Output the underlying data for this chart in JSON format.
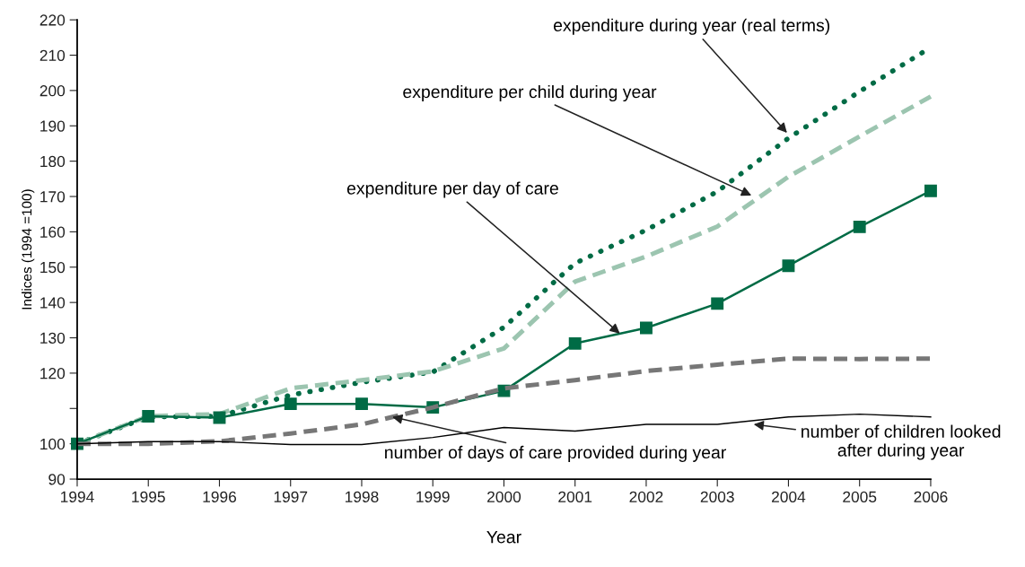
{
  "chart_data": {
    "type": "line",
    "xlabel": "Year",
    "ylabel": "Indices (1994 =100)",
    "x": [
      1994,
      1995,
      1996,
      1997,
      1998,
      1999,
      2000,
      2001,
      2002,
      2003,
      2004,
      2005,
      2006
    ],
    "xlim": [
      1994,
      2006
    ],
    "xticks": [
      1994,
      1995,
      1996,
      1997,
      1998,
      1999,
      2000,
      2001,
      2002,
      2003,
      2004,
      2005,
      2006
    ],
    "ylim": [
      90,
      220
    ],
    "yticks": [
      90,
      100,
      {
        "value": 110,
        "label": null
      },
      120,
      130,
      140,
      150,
      160,
      170,
      180,
      190,
      200,
      210,
      220
    ],
    "grid": false,
    "series": [
      {
        "color": "#006b45",
        "line_style": "dotted",
        "marker": "none",
        "values": [
          100,
          107.6,
          107.8,
          113.8,
          117.4,
          120.3,
          133,
          151.1,
          160.5,
          171.4,
          186.5,
          199.7,
          212.2
        ]
      },
      {
        "color": "#9cc5b0",
        "line_style": "dashed",
        "marker": "none",
        "values": [
          100,
          107.8,
          108.4,
          115.7,
          118,
          120.5,
          127,
          145.9,
          153,
          161.5,
          175.6,
          187,
          198.3
        ]
      },
      {
        "color": "#006b45",
        "line_style": "solid",
        "marker": "square",
        "values": [
          100,
          107.8,
          107.4,
          111.3,
          111.3,
          110.3,
          115,
          128.4,
          132.8,
          139.7,
          150.4,
          161.4,
          171.6
        ]
      },
      {
        "color": "#777777",
        "line_style": "dashed",
        "marker": "none",
        "values": [
          100,
          100,
          100.7,
          102.9,
          105.5,
          110.3,
          115.7,
          118,
          120.6,
          122.4,
          124.1,
          124,
          124.1
        ]
      },
      {
        "color": "#000000",
        "line_style": "solid",
        "marker": "none",
        "values": [
          100,
          100.6,
          100.6,
          99.8,
          99.8,
          101.8,
          104.6,
          103.6,
          105.5,
          105.5,
          107.6,
          108.4,
          107.6
        ]
      }
    ],
    "annotations": [
      {
        "text": "expenditure during year (real terms)",
        "x": 2003.98,
        "y": 188
      },
      {
        "text": "expenditure per child during year",
        "x": 2003.48,
        "y": 170.3
      },
      {
        "text": "expenditure per day of care",
        "x": 2001.63,
        "y": 131.2
      },
      {
        "text": "number of days of care provided during year",
        "x": 1998.43,
        "y": 107.6
      },
      {
        "text": "number of children looked\nafter during year",
        "x": 2003.51,
        "y": 105.5
      }
    ]
  }
}
